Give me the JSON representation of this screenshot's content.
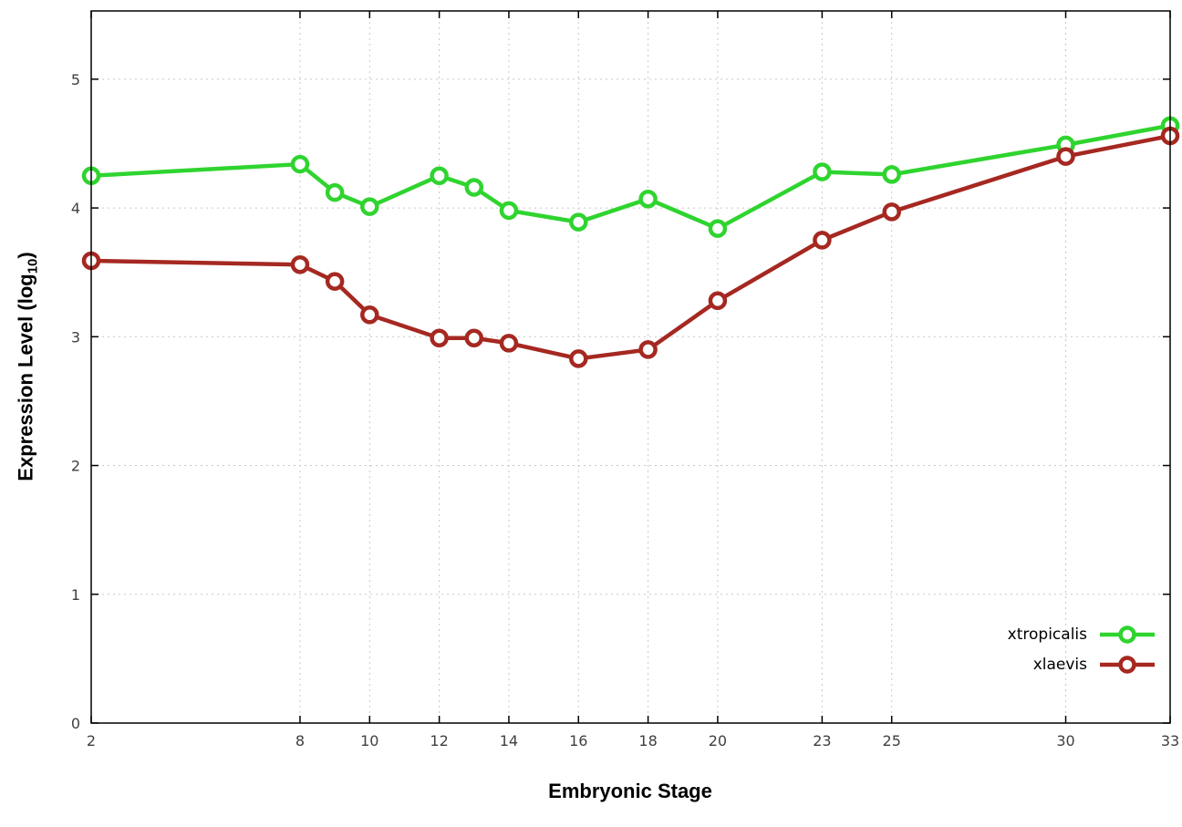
{
  "chart_data": {
    "type": "line",
    "title": "",
    "xlabel": "Embryonic Stage",
    "ylabel": {
      "pre": "Expression Level (log",
      "sub": "10",
      "post": ")"
    },
    "x_ticks": [
      2,
      8,
      10,
      12,
      14,
      16,
      18,
      20,
      23,
      25,
      30,
      33
    ],
    "y_ticks": [
      0,
      1,
      2,
      3,
      4,
      5
    ],
    "xlim": [
      2,
      33
    ],
    "ylim": [
      0,
      5.53
    ],
    "grid": true,
    "grid_color": "#c8c8c8",
    "tick_label_color": "#404040",
    "legend_position": "bottom-right",
    "x": [
      2,
      8,
      9,
      10,
      12,
      13,
      14,
      16,
      18,
      20,
      23,
      25,
      30,
      33
    ],
    "series": [
      {
        "name": "xtropicalis",
        "color": "#2fd42f",
        "values": [
          4.25,
          4.34,
          4.12,
          4.01,
          4.25,
          4.16,
          3.98,
          3.89,
          4.07,
          3.84,
          4.28,
          4.26,
          4.49,
          4.64
        ]
      },
      {
        "name": "xlaevis",
        "color": "#a52821",
        "values": [
          3.59,
          3.56,
          3.43,
          3.17,
          2.99,
          2.99,
          2.95,
          2.83,
          2.9,
          3.28,
          3.75,
          3.97,
          4.4,
          4.56
        ]
      }
    ]
  }
}
